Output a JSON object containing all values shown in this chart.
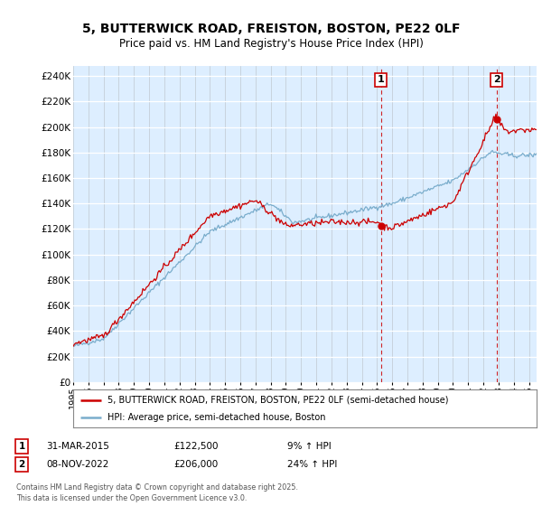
{
  "title": "5, BUTTERWICK ROAD, FREISTON, BOSTON, PE22 0LF",
  "subtitle": "Price paid vs. HM Land Registry's House Price Index (HPI)",
  "ylabel_ticks": [
    "£0",
    "£20K",
    "£40K",
    "£60K",
    "£80K",
    "£100K",
    "£120K",
    "£140K",
    "£160K",
    "£180K",
    "£200K",
    "£220K",
    "£240K"
  ],
  "ytick_values": [
    0,
    20000,
    40000,
    60000,
    80000,
    100000,
    120000,
    140000,
    160000,
    180000,
    200000,
    220000,
    240000
  ],
  "ylim": [
    0,
    248000
  ],
  "xlim_start": 1995.0,
  "xlim_end": 2025.5,
  "sale1_x": 2015.25,
  "sale1_y": 122500,
  "sale1_label": "1",
  "sale1_date": "31-MAR-2015",
  "sale1_price": "£122,500",
  "sale1_hpi": "9% ↑ HPI",
  "sale2_x": 2022.86,
  "sale2_y": 206000,
  "sale2_label": "2",
  "sale2_date": "08-NOV-2022",
  "sale2_price": "£206,000",
  "sale2_hpi": "24% ↑ HPI",
  "line1_color": "#cc0000",
  "line2_color": "#7aadcc",
  "vline_color": "#cc0000",
  "background_color": "#ffffff",
  "plot_bg_color": "#ddeeff",
  "grid_color": "#c0c8d0",
  "legend_line1": "5, BUTTERWICK ROAD, FREISTON, BOSTON, PE22 0LF (semi-detached house)",
  "legend_line2": "HPI: Average price, semi-detached house, Boston",
  "footer": "Contains HM Land Registry data © Crown copyright and database right 2025.\nThis data is licensed under the Open Government Licence v3.0.",
  "xtick_years": [
    1995,
    1996,
    1997,
    1998,
    1999,
    2000,
    2001,
    2002,
    2003,
    2004,
    2005,
    2006,
    2007,
    2008,
    2009,
    2010,
    2011,
    2012,
    2013,
    2014,
    2015,
    2016,
    2017,
    2018,
    2019,
    2020,
    2021,
    2022,
    2023,
    2024,
    2025
  ]
}
